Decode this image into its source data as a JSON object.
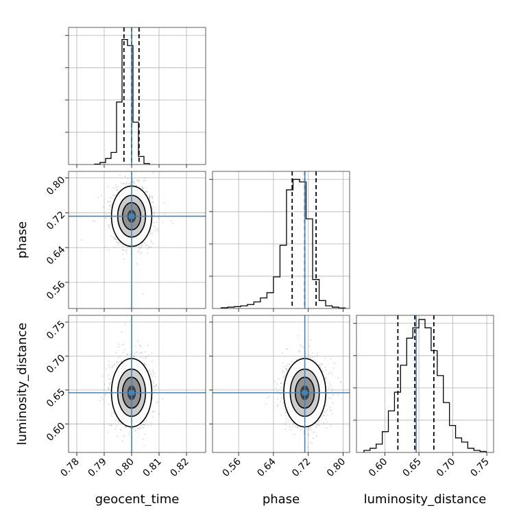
{
  "chart_data": {
    "type": "corner",
    "parameters": [
      "geocent_time",
      "phase",
      "luminosity_distance"
    ],
    "truths": {
      "geocent_time": 0.8,
      "phase": 0.712,
      "luminosity_distance": 0.646
    },
    "grid": true,
    "panels": {
      "geocent_time_hist": {
        "xlim": [
          0.777,
          0.827
        ],
        "ylim": [
          0,
          0.68
        ],
        "bin_edges": [
          0.7865,
          0.7885,
          0.7905,
          0.7925,
          0.7945,
          0.7965,
          0.7985,
          0.8005,
          0.8025,
          0.8045,
          0.8065
        ],
        "counts": [
          0.002,
          0.01,
          0.03,
          0.06,
          0.31,
          0.62,
          0.59,
          0.21,
          0.04,
          0.005
        ],
        "quantiles": [
          0.7972,
          0.8,
          0.8027
        ]
      },
      "phase_hist": {
        "xlim": [
          0.5,
          0.815
        ],
        "ylim": [
          0,
          0.52
        ],
        "bin_edges": [
          0.52,
          0.535,
          0.55,
          0.565,
          0.58,
          0.595,
          0.61,
          0.625,
          0.64,
          0.655,
          0.67,
          0.685,
          0.7,
          0.715,
          0.73,
          0.745,
          0.76,
          0.775,
          0.79,
          0.805
        ],
        "counts": [
          0.003,
          0.005,
          0.007,
          0.01,
          0.015,
          0.025,
          0.04,
          0.06,
          0.12,
          0.24,
          0.45,
          0.49,
          0.48,
          0.34,
          0.11,
          0.03,
          0.01,
          0.005,
          0.002
        ],
        "quantiles": [
          0.683,
          0.712,
          0.738
        ]
      },
      "luminosity_distance_hist": {
        "xlim": [
          0.558,
          0.76
        ],
        "ylim": [
          0,
          0.66
        ],
        "bin_edges": [
          0.569,
          0.578,
          0.587,
          0.596,
          0.605,
          0.614,
          0.623,
          0.632,
          0.641,
          0.65,
          0.659,
          0.668,
          0.677,
          0.686,
          0.695,
          0.704,
          0.713,
          0.722,
          0.731,
          0.74,
          0.749
        ],
        "counts": [
          0.01,
          0.02,
          0.04,
          0.1,
          0.2,
          0.29,
          0.42,
          0.55,
          0.6,
          0.64,
          0.6,
          0.49,
          0.37,
          0.24,
          0.13,
          0.07,
          0.05,
          0.02,
          0.01,
          0.005
        ],
        "quantiles": [
          0.619,
          0.644,
          0.672
        ]
      },
      "geocent_time_vs_phase": {
        "xlim": [
          0.777,
          0.827
        ],
        "ylim": [
          0.5,
          0.815
        ],
        "center": [
          0.8,
          0.712
        ],
        "spread": [
          0.0035,
          0.033
        ]
      },
      "geocent_time_vs_luminosity_distance": {
        "xlim": [
          0.777,
          0.827
        ],
        "ylim": [
          0.558,
          0.76
        ],
        "center": [
          0.8,
          0.646
        ],
        "spread": [
          0.0035,
          0.024
        ]
      },
      "phase_vs_luminosity_distance": {
        "xlim": [
          0.5,
          0.815
        ],
        "ylim": [
          0.558,
          0.76
        ],
        "center": [
          0.712,
          0.646
        ],
        "spread": [
          0.023,
          0.024
        ]
      }
    },
    "ticks": {
      "geocent_time": {
        "values": [
          0.78,
          0.79,
          0.8,
          0.81,
          0.82
        ],
        "labels": [
          "0.78",
          "0.79",
          "0.80",
          "0.81",
          "0.82"
        ]
      },
      "phase": {
        "values": [
          0.56,
          0.64,
          0.72,
          0.8
        ],
        "labels": [
          "0.56",
          "0.64",
          "0.72",
          "0.80"
        ]
      },
      "luminosity_distance": {
        "values": [
          0.6,
          0.65,
          0.7,
          0.75
        ],
        "labels": [
          "0.60",
          "0.65",
          "0.70",
          "0.75"
        ]
      }
    },
    "labels": {
      "x": [
        "geocent_time",
        "phase",
        "luminosity_distance"
      ],
      "y": [
        "phase",
        "luminosity_distance"
      ]
    }
  }
}
